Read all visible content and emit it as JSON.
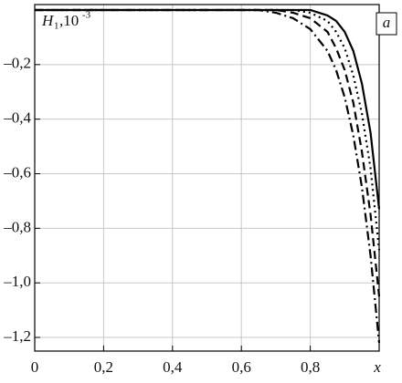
{
  "chart_data": {
    "type": "line",
    "ylabel": "H",
    "ylabel_sub": "1",
    "ylabel_rest": ",10",
    "ylabel_sup": "-3",
    "xlabel": "x",
    "panel_label": "a",
    "x": [
      0,
      0.5,
      0.6,
      0.65,
      0.7,
      0.75,
      0.8,
      0.85,
      0.875,
      0.9,
      0.925,
      0.95,
      0.975,
      1.0
    ],
    "series": [
      {
        "color": "#000000",
        "dash": "solid",
        "values": [
          0,
          0,
          0,
          0,
          0,
          0,
          0,
          -0.02,
          -0.04,
          -0.08,
          -0.15,
          -0.27,
          -0.45,
          -0.73
        ]
      },
      {
        "color": "#000000",
        "dash": "dot",
        "values": [
          0,
          0,
          0,
          0,
          0,
          0,
          -0.01,
          -0.04,
          -0.08,
          -0.14,
          -0.24,
          -0.38,
          -0.58,
          -0.88
        ]
      },
      {
        "color": "#000000",
        "dash": "dash",
        "values": [
          0,
          0,
          0,
          0,
          0,
          -0.01,
          -0.03,
          -0.08,
          -0.14,
          -0.22,
          -0.34,
          -0.52,
          -0.75,
          -1.05
        ]
      },
      {
        "color": "#000000",
        "dash": "dashdot",
        "values": [
          0,
          0,
          0,
          0,
          -0.01,
          -0.03,
          -0.07,
          -0.15,
          -0.22,
          -0.32,
          -0.46,
          -0.65,
          -0.9,
          -1.22
        ]
      }
    ],
    "xlim": [
      0,
      1
    ],
    "ylim": [
      -1.25,
      0.02
    ],
    "xticks": [
      0,
      {
        "value": 0.2,
        "label": "0,2"
      },
      {
        "value": 0.4,
        "label": "0,4"
      },
      {
        "value": 0.6,
        "label": "0,6"
      },
      {
        "value": 0.8,
        "label": "0,8"
      }
    ],
    "yticks": [
      {
        "value": -0.2,
        "label": "–0,2"
      },
      {
        "value": -0.4,
        "label": "–0,4"
      },
      {
        "value": -0.6,
        "label": "–0,6"
      },
      {
        "value": -0.8,
        "label": "–0,8"
      },
      {
        "value": -1.0,
        "label": "–1,0"
      },
      {
        "value": -1.2,
        "label": "–1,2"
      }
    ],
    "grid": true
  }
}
